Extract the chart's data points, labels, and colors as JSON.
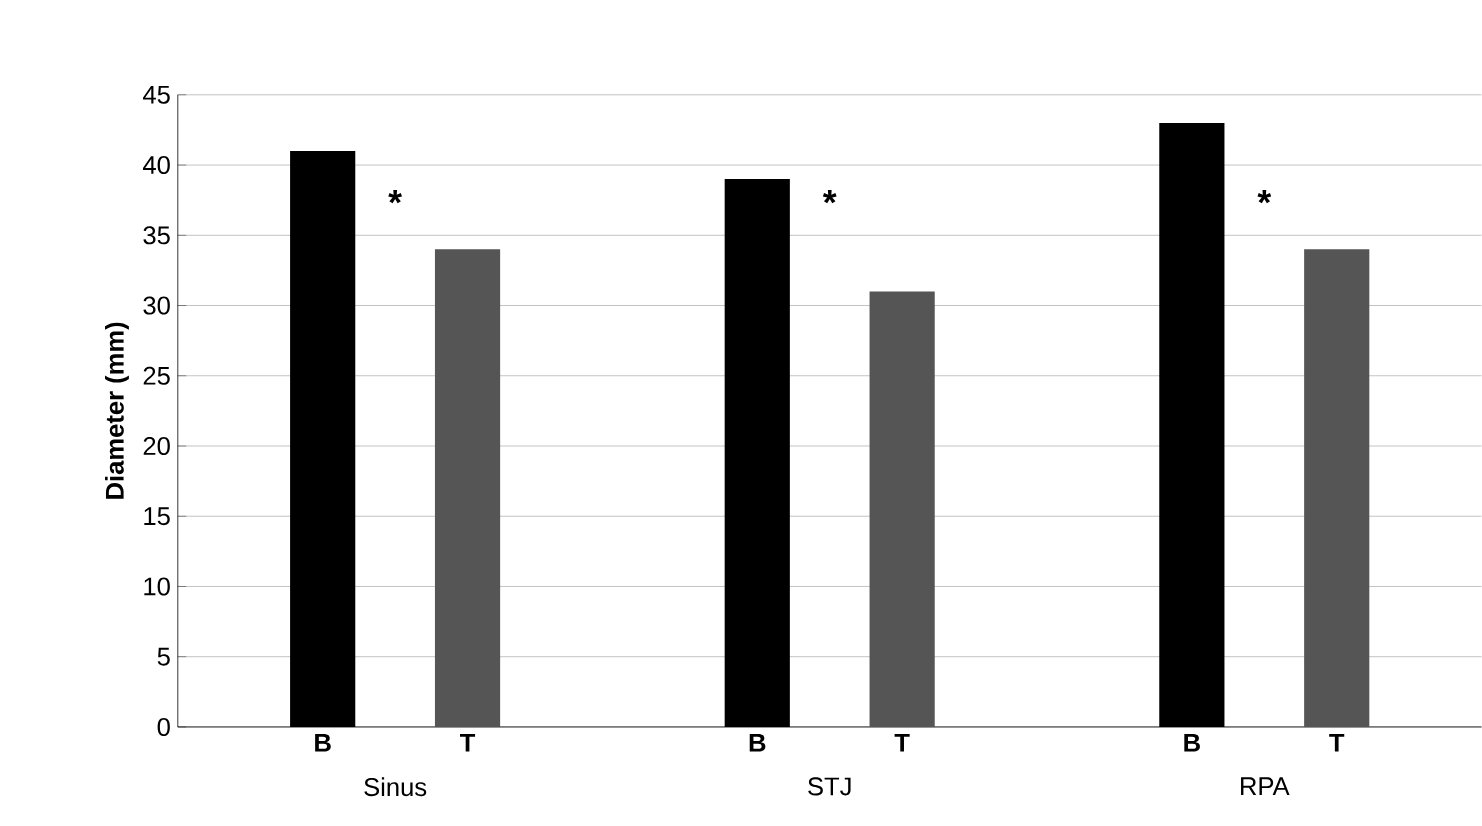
{
  "chart_data": {
    "type": "bar",
    "ylabel": "Diameter (mm)",
    "categories": [
      "Sinus",
      "STJ",
      "RPA"
    ],
    "series": [
      {
        "name": "B",
        "color": "#000000",
        "values": [
          41,
          39,
          43
        ]
      },
      {
        "name": "T",
        "color": "#555555",
        "values": [
          34,
          31,
          34
        ]
      }
    ],
    "ylim": [
      0,
      45
    ],
    "yticks": [
      0,
      5,
      10,
      15,
      20,
      25,
      30,
      35,
      40,
      45
    ],
    "grid": "y",
    "annotations": [
      "*",
      "*",
      "*"
    ]
  }
}
